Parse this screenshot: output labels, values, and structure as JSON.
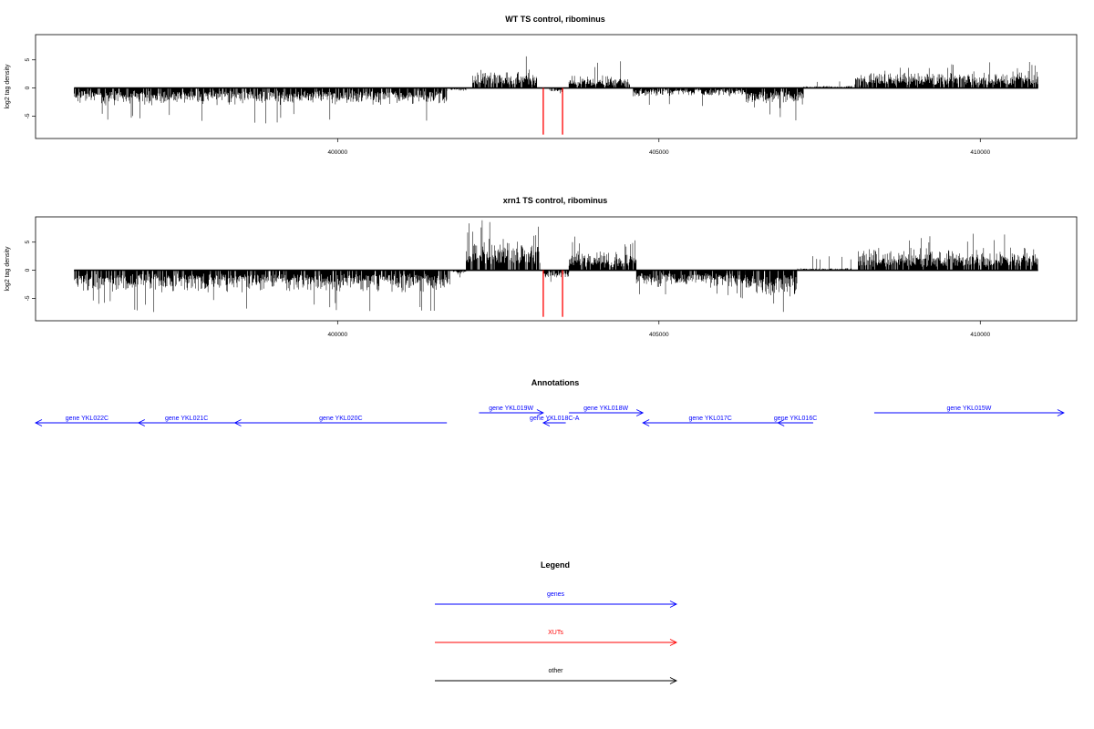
{
  "chart_data": [
    {
      "type": "bar",
      "title": "WT TS control, ribominus",
      "ylabel": "log2 tag density",
      "xlabel": "",
      "xlim": [
        395300,
        411500
      ],
      "ylim": [
        -9,
        9.5
      ],
      "xticks": [
        400000,
        405000,
        410000
      ],
      "xtick_labels": [
        "400000",
        "405000",
        "410000"
      ],
      "yticks": [
        -5,
        0,
        5
      ],
      "ytick_labels": [
        "-5",
        "0",
        "5"
      ],
      "baseline": {
        "x": [
          395900,
          410900
        ],
        "y": 0
      },
      "segments": [
        {
          "x": [
            395900,
            401700
          ],
          "sign": -1,
          "amp": 3.2,
          "spike": 6.5
        },
        {
          "x": [
            401700,
            402000
          ],
          "sign": -1,
          "amp": 0.6,
          "spike": 1.0
        },
        {
          "x": [
            402100,
            403100
          ],
          "sign": 1,
          "amp": 3.5,
          "spike": 6.5
        },
        {
          "x": [
            403300,
            403500
          ],
          "sign": -1,
          "amp": 1.0,
          "spike": 1.5
        },
        {
          "x": [
            403600,
            404550
          ],
          "sign": 1,
          "amp": 2.4,
          "spike": 4.8
        },
        {
          "x": [
            404600,
            406350
          ],
          "sign": -1,
          "amp": 1.6,
          "spike": 3.5
        },
        {
          "x": [
            406350,
            407250
          ],
          "sign": -1,
          "amp": 3.8,
          "spike": 6.2
        },
        {
          "x": [
            407250,
            408000
          ],
          "sign": 1,
          "amp": 0.4,
          "spike": 1.2
        },
        {
          "x": [
            408050,
            410900
          ],
          "sign": 1,
          "amp": 3.2,
          "spike": 5.0
        }
      ],
      "highlighted": [
        {
          "x": 403200,
          "y": -8.3,
          "color": "#ff0000"
        },
        {
          "x": 403500,
          "y": -8.3,
          "color": "#ff0000"
        }
      ]
    },
    {
      "type": "bar",
      "title": "xrn1 TS control, ribominus",
      "ylabel": "log2 tag density",
      "xlabel": "",
      "xlim": [
        395300,
        411500
      ],
      "ylim": [
        -9,
        9.5
      ],
      "xticks": [
        400000,
        405000,
        410000
      ],
      "xtick_labels": [
        "400000",
        "405000",
        "410000"
      ],
      "yticks": [
        -5,
        0,
        5
      ],
      "ytick_labels": [
        "-5",
        "0",
        "5"
      ],
      "baseline": {
        "x": [
          395900,
          410900
        ],
        "y": 0
      },
      "segments": [
        {
          "x": [
            395900,
            401750
          ],
          "sign": -1,
          "amp": 4.2,
          "spike": 7.5
        },
        {
          "x": [
            401800,
            402000
          ],
          "sign": -1,
          "amp": 0.8,
          "spike": 1.5
        },
        {
          "x": [
            402000,
            403150
          ],
          "sign": 1,
          "amp": 6.5,
          "spike": 9.0
        },
        {
          "x": [
            403200,
            403600
          ],
          "sign": -1,
          "amp": 1.5,
          "spike": 2.5
        },
        {
          "x": [
            403600,
            404650
          ],
          "sign": 1,
          "amp": 3.8,
          "spike": 6.0
        },
        {
          "x": [
            404650,
            406350
          ],
          "sign": -1,
          "amp": 3.2,
          "spike": 5.5
        },
        {
          "x": [
            406350,
            407150
          ],
          "sign": -1,
          "amp": 5.5,
          "spike": 8.0
        },
        {
          "x": [
            407150,
            408000
          ],
          "sign": 1,
          "amp": 0.4,
          "spike": 2.5
        },
        {
          "x": [
            408100,
            410900
          ],
          "sign": 1,
          "amp": 4.2,
          "spike": 6.5
        }
      ],
      "highlighted": [
        {
          "x": 403200,
          "y": -8.3,
          "color": "#ff0000"
        },
        {
          "x": 403500,
          "y": -8.3,
          "color": "#ff0000"
        }
      ]
    }
  ],
  "annotations": {
    "title": "Annotations",
    "color": "#0000ff",
    "genes": [
      {
        "label": "gene YKL022C",
        "start": 395300,
        "end": 396900,
        "strand": "-",
        "row": 0
      },
      {
        "label": "gene YKL021C",
        "start": 396900,
        "end": 398400,
        "strand": "-",
        "row": 0
      },
      {
        "label": "gene YKL020C",
        "start": 398400,
        "end": 401700,
        "strand": "-",
        "row": 0
      },
      {
        "label": "gene YKL019W",
        "start": 402200,
        "end": 403200,
        "strand": "+",
        "row": 1
      },
      {
        "label": "gene YKL018C-A",
        "start": 403200,
        "end": 403550,
        "strand": "-",
        "row": 0
      },
      {
        "label": "gene YKL018W",
        "start": 403600,
        "end": 404750,
        "strand": "+",
        "row": 1
      },
      {
        "label": "gene YKL017C",
        "start": 404750,
        "end": 406850,
        "strand": "-",
        "row": 0
      },
      {
        "label": "gene YKL016C",
        "start": 406850,
        "end": 407400,
        "strand": "-",
        "row": 0
      },
      {
        "label": "gene YKL015W",
        "start": 408350,
        "end": 411300,
        "strand": "+",
        "row": 1
      }
    ]
  },
  "legend": {
    "title": "Legend",
    "items": [
      {
        "label": "genes",
        "color": "#0000ff"
      },
      {
        "label": "XUTs",
        "color": "#ff0000"
      },
      {
        "label": "other",
        "color": "#000000"
      }
    ]
  }
}
